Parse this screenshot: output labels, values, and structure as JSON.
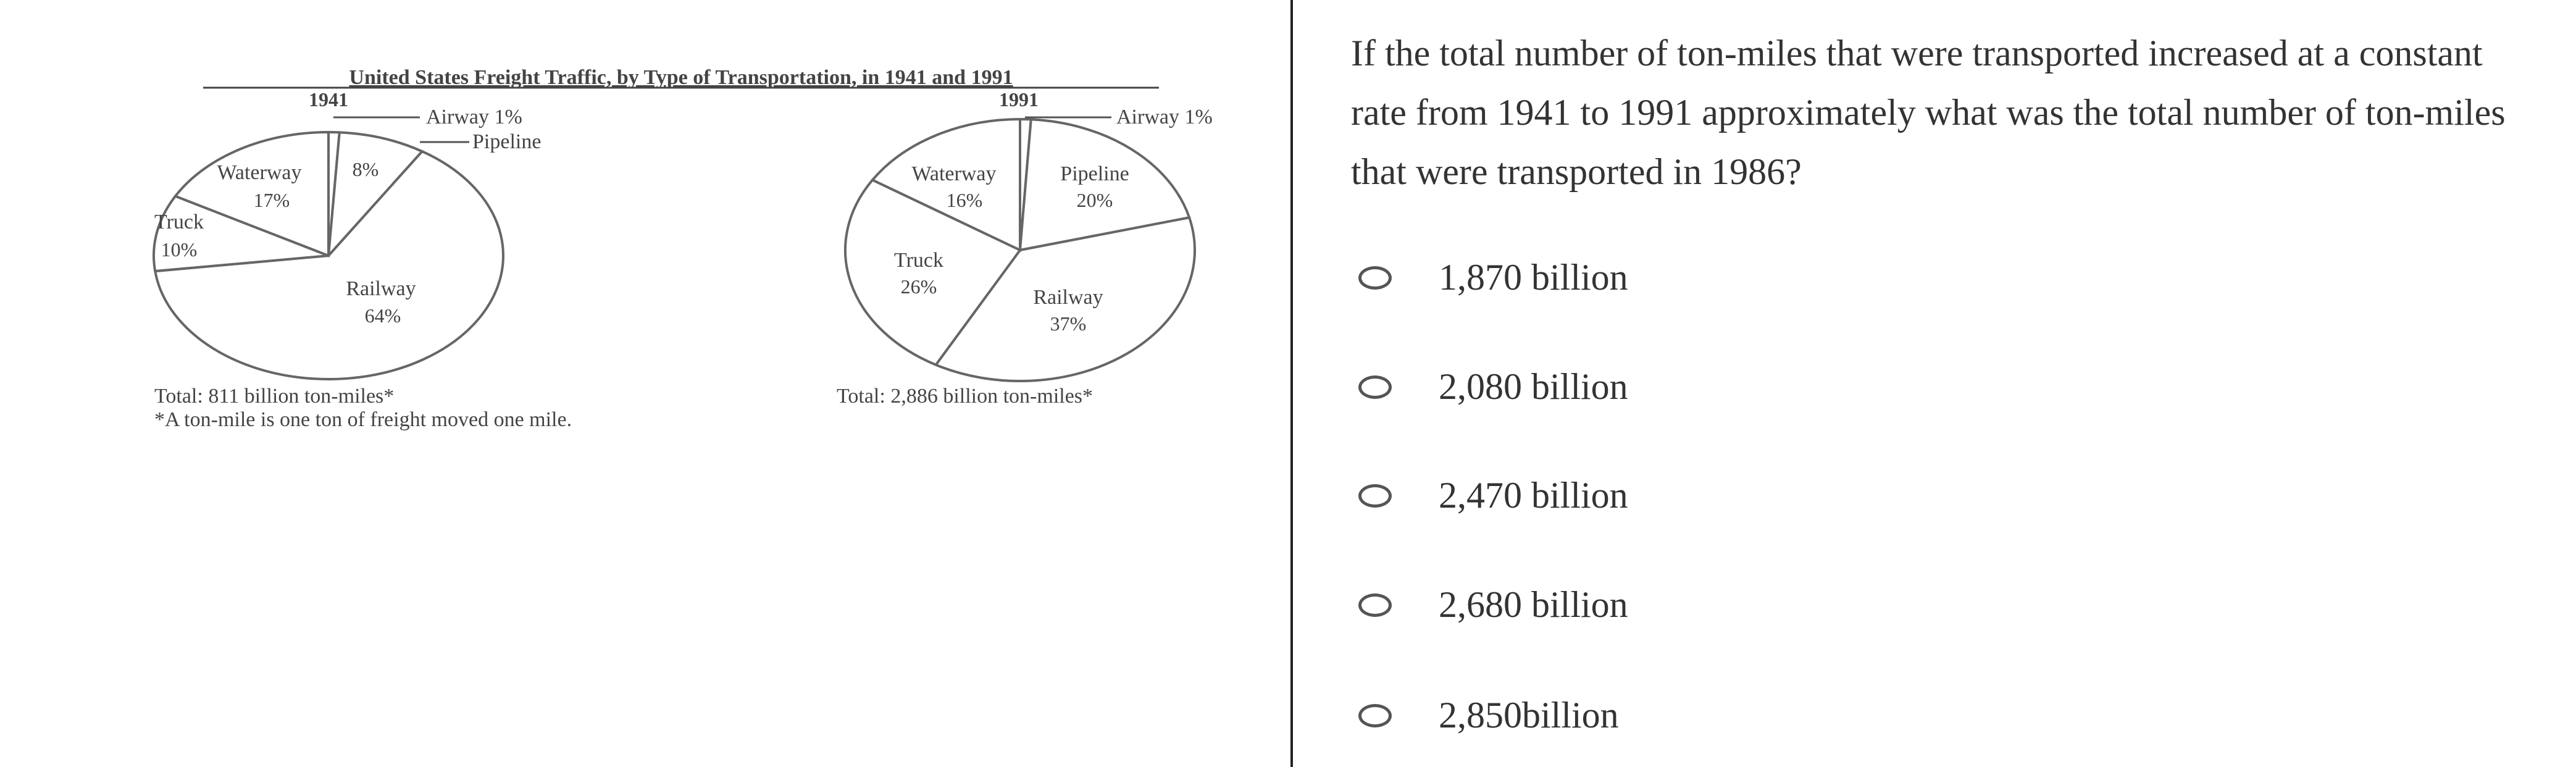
{
  "chart_data": [
    {
      "type": "pie",
      "title": "United States Freight Traffic, by Type of Transportation, in 1941 and 1991",
      "subtitle": "1941",
      "categories": [
        "Airway",
        "Pipeline",
        "Railway",
        "Truck",
        "Waterway"
      ],
      "values": [
        1,
        8,
        64,
        10,
        17
      ],
      "labels": {
        "airway": "Airway 1%",
        "pipeline": "Pipeline",
        "pipeline_pct": "8%",
        "railway": "Railway",
        "railway_pct": "64%",
        "truck": "Truck",
        "truck_pct": "10%",
        "waterway": "Waterway",
        "waterway_pct": "17%"
      },
      "total": "Total: 811 billion ton-miles*",
      "footnote": "*A ton-mile is one ton of freight moved one mile."
    },
    {
      "type": "pie",
      "subtitle": "1991",
      "categories": [
        "Airway",
        "Pipeline",
        "Railway",
        "Truck",
        "Waterway"
      ],
      "values": [
        1,
        20,
        37,
        26,
        16
      ],
      "labels": {
        "airway": "Airway 1%",
        "pipeline": "Pipeline",
        "pipeline_pct": "20%",
        "railway": "Railway",
        "railway_pct": "37%",
        "truck": "Truck",
        "truck_pct": "26%",
        "waterway": "Waterway",
        "waterway_pct": "16%"
      },
      "total": "Total: 2,886 billion ton-miles*"
    }
  ],
  "question": {
    "text": "If the total number of ton-miles that were transported increased at a constant rate from 1941 to 1991 approximately what was the total number of ton-miles that were transported in 1986?",
    "options": [
      "1,870 billion",
      "2,080 billion",
      "2,470 billion",
      "2,680 billion",
      "2,850billion"
    ]
  }
}
